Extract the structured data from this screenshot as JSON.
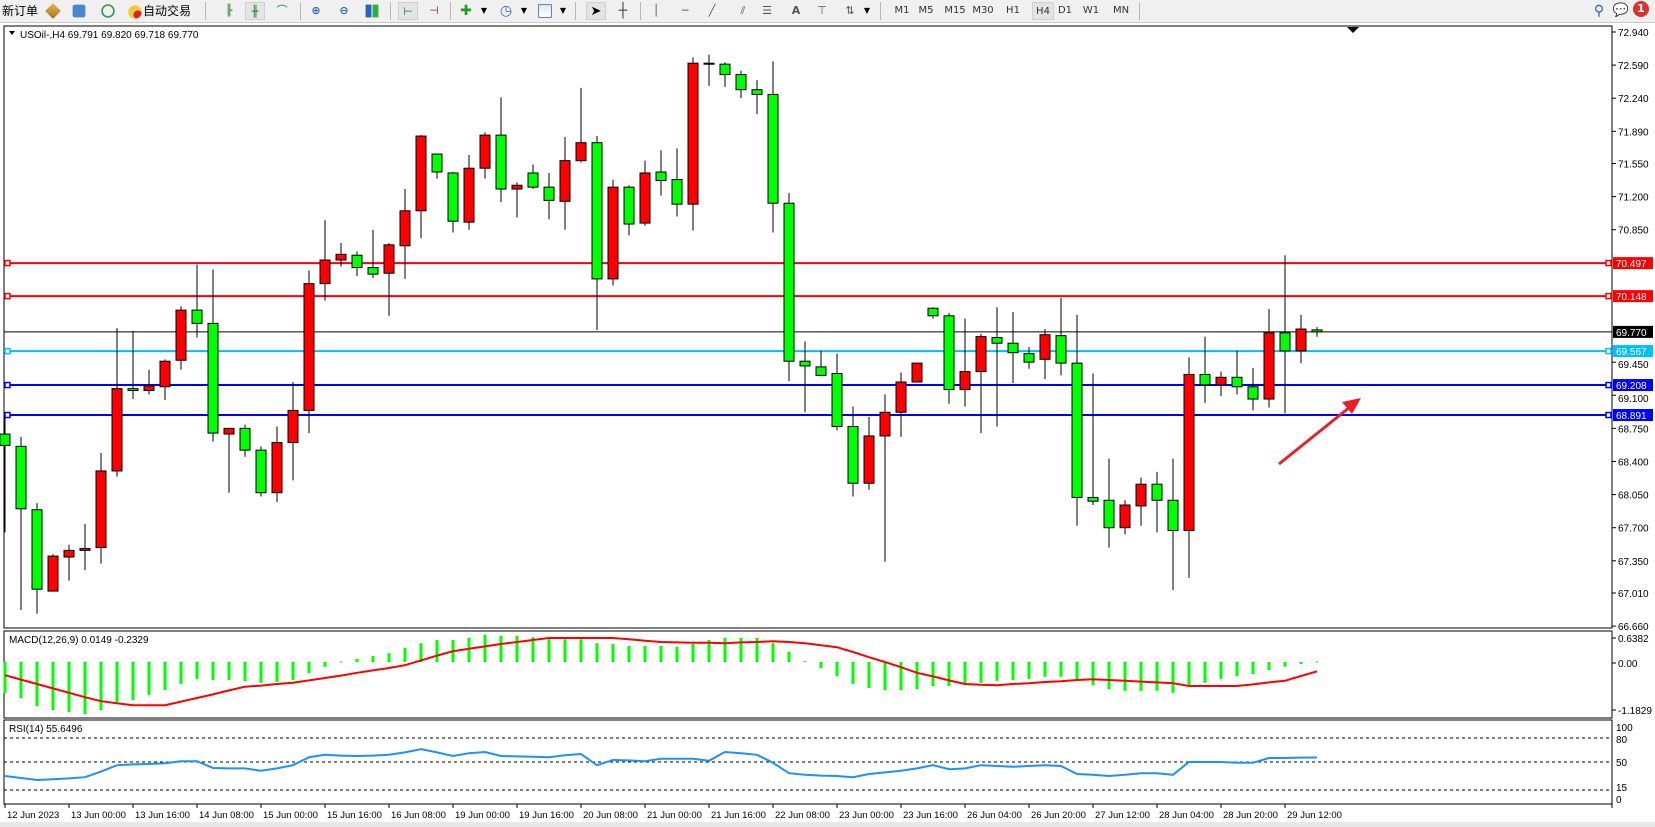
{
  "toolbar": {
    "new_order": "新订单",
    "auto_trading": "自动交易",
    "timeframes": [
      "M1",
      "M5",
      "M15",
      "M30",
      "H1",
      "H4",
      "D1",
      "W1",
      "MN"
    ],
    "active_timeframe": "H4",
    "notification_count": "1",
    "icons": [
      "market-watch-icon",
      "navigator-icon",
      "signals-icon",
      "auto-trading-icon",
      "bar-chart-icon",
      "candlestick-icon",
      "line-chart-icon",
      "zoom-in-icon",
      "zoom-out-icon",
      "tile-windows-icon",
      "chart-shift-icon",
      "autoscroll-icon",
      "new-chart-icon",
      "periods-icon",
      "templates-icon",
      "cursor-icon",
      "crosshair-icon",
      "vertical-line-icon",
      "horizontal-line-icon",
      "trendline-icon",
      "fibo-channel-icon",
      "fibo-retracement-icon",
      "text-icon",
      "text-label-icon",
      "arrows-icon",
      "search-icon",
      "notifications-icon"
    ]
  },
  "chart": {
    "header": "USOil-,H4  69.791 69.820 69.718 69.770",
    "price_ticks": [
      "72.940",
      "72.590",
      "72.240",
      "71.890",
      "71.550",
      "71.200",
      "70.850",
      "69.450",
      "69.100",
      "68.750",
      "68.400",
      "68.050",
      "67.700",
      "67.350",
      "67.010",
      "66.660"
    ],
    "hlines": [
      {
        "value": "70.497",
        "color": "#ff0000",
        "text_color": "#ffffff"
      },
      {
        "value": "70.148",
        "color": "#ff0000",
        "text_color": "#ffffff"
      },
      {
        "value": "69.567",
        "color": "#00bfff",
        "text_color": "#ffffff"
      },
      {
        "value": "69.208",
        "color": "#0000ff",
        "text_color": "#ffffff"
      },
      {
        "value": "68.891",
        "color": "#0000ff",
        "text_color": "#ffffff"
      }
    ],
    "current_price": {
      "value": "69.770",
      "color": "#000000"
    },
    "bull_color": "#ff0000",
    "bear_color": "#00ff00",
    "annotation_arrow_color": "#e8202a",
    "macd": {
      "label": "MACD(12,26,9) 0.0149 -0.2329",
      "ticks": [
        "0.6382",
        "0.00",
        "-1.1829"
      ],
      "hist_color": "#00ff00",
      "signal_color": "#ff0000"
    },
    "rsi": {
      "label": "RSI(14) 55.6496",
      "ticks": [
        "100",
        "80",
        "50",
        "15",
        "0"
      ],
      "levels": [
        80,
        50,
        15
      ],
      "color": "#1e90ff"
    },
    "time_labels": [
      {
        "bar": 0,
        "text": "12 Jun 2023"
      },
      {
        "bar": 4,
        "text": "13 Jun 00:00"
      },
      {
        "bar": 8,
        "text": "13 Jun 16:00"
      },
      {
        "bar": 12,
        "text": "14 Jun 08:00"
      },
      {
        "bar": 16,
        "text": "15 Jun 00:00"
      },
      {
        "bar": 20,
        "text": "15 Jun 16:00"
      },
      {
        "bar": 24,
        "text": "16 Jun 08:00"
      },
      {
        "bar": 28,
        "text": "19 Jun 00:00"
      },
      {
        "bar": 32,
        "text": "19 Jun 16:00"
      },
      {
        "bar": 36,
        "text": "20 Jun 08:00"
      },
      {
        "bar": 40,
        "text": "21 Jun 00:00"
      },
      {
        "bar": 44,
        "text": "21 Jun 16:00"
      },
      {
        "bar": 48,
        "text": "22 Jun 08:00"
      },
      {
        "bar": 52,
        "text": "23 Jun 00:00"
      },
      {
        "bar": 56,
        "text": "23 Jun 16:00"
      },
      {
        "bar": 60,
        "text": "26 Jun 04:00"
      },
      {
        "bar": 64,
        "text": "26 Jun 20:00"
      },
      {
        "bar": 68,
        "text": "27 Jun 12:00"
      },
      {
        "bar": 72,
        "text": "28 Jun 04:00"
      },
      {
        "bar": 76,
        "text": "28 Jun 20:00"
      },
      {
        "bar": 80,
        "text": "29 Jun 12:00"
      }
    ]
  },
  "chart_data": {
    "type": "candlestick",
    "symbol": "USOil-",
    "timeframe": "H4",
    "ylim": [
      66.66,
      72.94
    ],
    "ohlc": [
      [
        68.69,
        68.86,
        67.65,
        68.57
      ],
      [
        68.56,
        68.66,
        66.83,
        67.9
      ],
      [
        67.89,
        67.96,
        66.79,
        67.05
      ],
      [
        67.03,
        67.42,
        67.03,
        67.4
      ],
      [
        67.39,
        67.52,
        67.14,
        67.46
      ],
      [
        67.46,
        67.74,
        67.25,
        67.48
      ],
      [
        67.49,
        68.49,
        67.32,
        68.3
      ],
      [
        68.3,
        69.81,
        68.24,
        69.17
      ],
      [
        69.17,
        69.78,
        69.06,
        69.15
      ],
      [
        69.15,
        69.37,
        69.11,
        69.2
      ],
      [
        69.19,
        69.48,
        69.05,
        69.46
      ],
      [
        69.47,
        70.04,
        69.37,
        70.0
      ],
      [
        70.0,
        70.48,
        69.71,
        69.86
      ],
      [
        69.86,
        70.43,
        68.61,
        68.7
      ],
      [
        68.69,
        68.75,
        68.07,
        68.75
      ],
      [
        68.75,
        68.79,
        68.45,
        68.52
      ],
      [
        68.52,
        68.56,
        68.03,
        68.07
      ],
      [
        68.07,
        68.77,
        67.97,
        68.6
      ],
      [
        68.6,
        69.24,
        68.2,
        68.94
      ],
      [
        68.94,
        70.42,
        68.7,
        70.28
      ],
      [
        70.28,
        70.95,
        70.1,
        70.53
      ],
      [
        70.53,
        70.71,
        70.46,
        70.59
      ],
      [
        70.58,
        70.62,
        70.36,
        70.45
      ],
      [
        70.45,
        70.85,
        70.34,
        70.38
      ],
      [
        70.39,
        70.71,
        69.94,
        70.69
      ],
      [
        70.68,
        71.28,
        70.33,
        71.05
      ],
      [
        71.05,
        71.85,
        70.76,
        71.84
      ],
      [
        71.65,
        71.65,
        71.39,
        71.46
      ],
      [
        71.45,
        71.46,
        70.82,
        70.94
      ],
      [
        70.93,
        71.64,
        70.85,
        71.5
      ],
      [
        71.5,
        71.88,
        71.39,
        71.85
      ],
      [
        71.85,
        72.25,
        71.14,
        71.28
      ],
      [
        71.28,
        71.35,
        70.98,
        71.32
      ],
      [
        71.45,
        71.54,
        71.28,
        71.3
      ],
      [
        71.3,
        71.45,
        70.96,
        71.16
      ],
      [
        71.15,
        71.83,
        70.85,
        71.58
      ],
      [
        71.58,
        72.35,
        71.56,
        71.77
      ],
      [
        71.77,
        71.84,
        69.79,
        70.33
      ],
      [
        70.33,
        71.38,
        70.26,
        71.3
      ],
      [
        71.3,
        71.32,
        70.79,
        70.91
      ],
      [
        70.92,
        71.58,
        70.89,
        71.45
      ],
      [
        71.46,
        71.69,
        71.21,
        71.37
      ],
      [
        71.38,
        71.71,
        70.99,
        71.12
      ],
      [
        71.12,
        72.67,
        70.84,
        72.61
      ],
      [
        72.61,
        72.7,
        72.37,
        72.6
      ],
      [
        72.6,
        72.62,
        72.36,
        72.49
      ],
      [
        72.49,
        72.53,
        72.24,
        72.33
      ],
      [
        72.33,
        72.43,
        72.07,
        72.28
      ],
      [
        72.28,
        72.63,
        70.82,
        71.13
      ],
      [
        71.13,
        71.24,
        69.25,
        69.46
      ],
      [
        69.46,
        69.67,
        68.92,
        69.41
      ],
      [
        69.4,
        69.57,
        69.31,
        69.31
      ],
      [
        69.33,
        69.54,
        68.73,
        68.77
      ],
      [
        68.77,
        68.98,
        68.03,
        68.17
      ],
      [
        68.17,
        68.87,
        68.1,
        68.67
      ],
      [
        68.67,
        69.11,
        67.34,
        68.92
      ],
      [
        68.92,
        69.34,
        68.66,
        69.24
      ],
      [
        69.24,
        69.44,
        69.24,
        69.44
      ],
      [
        70.02,
        70.03,
        69.91,
        69.94
      ],
      [
        69.94,
        69.97,
        69.01,
        69.16
      ],
      [
        69.16,
        69.91,
        68.98,
        69.35
      ],
      [
        69.35,
        69.75,
        68.7,
        69.72
      ],
      [
        69.71,
        70.03,
        68.77,
        69.65
      ],
      [
        69.65,
        69.98,
        69.23,
        69.55
      ],
      [
        69.54,
        69.61,
        69.38,
        69.45
      ],
      [
        69.48,
        69.8,
        69.27,
        69.74
      ],
      [
        69.73,
        70.13,
        69.31,
        69.44
      ],
      [
        69.44,
        69.95,
        67.72,
        68.02
      ],
      [
        68.02,
        69.33,
        67.94,
        67.98
      ],
      [
        67.99,
        68.43,
        67.49,
        67.7
      ],
      [
        67.7,
        67.99,
        67.63,
        67.94
      ],
      [
        67.93,
        68.23,
        67.72,
        68.16
      ],
      [
        68.16,
        68.29,
        67.65,
        67.99
      ],
      [
        67.99,
        68.43,
        67.04,
        67.67
      ],
      [
        67.67,
        69.5,
        67.17,
        69.32
      ],
      [
        69.32,
        69.72,
        69.02,
        69.21
      ],
      [
        69.21,
        69.35,
        69.09,
        69.29
      ],
      [
        69.29,
        69.57,
        69.11,
        69.19
      ],
      [
        69.19,
        69.39,
        68.94,
        69.06
      ],
      [
        69.06,
        70.01,
        68.97,
        69.76
      ],
      [
        69.76,
        70.58,
        68.91,
        69.57
      ],
      [
        69.57,
        69.95,
        69.44,
        69.8
      ],
      [
        69.791,
        69.82,
        69.718,
        69.77
      ]
    ],
    "macd_ylim": [
      -1.1829,
      0.6382
    ],
    "macd_hist": [
      -0.78,
      -0.9,
      -1.1,
      -1.2,
      -1.25,
      -1.3,
      -1.2,
      -1.0,
      -0.95,
      -0.82,
      -0.7,
      -0.55,
      -0.42,
      -0.45,
      -0.45,
      -0.48,
      -0.52,
      -0.5,
      -0.45,
      -0.28,
      -0.12,
      0.01,
      0.08,
      0.15,
      0.22,
      0.35,
      0.47,
      0.55,
      0.55,
      0.6,
      0.68,
      0.65,
      0.65,
      0.62,
      0.57,
      0.57,
      0.57,
      0.47,
      0.45,
      0.4,
      0.4,
      0.4,
      0.38,
      0.45,
      0.55,
      0.6,
      0.6,
      0.6,
      0.47,
      0.25,
      0.02,
      -0.15,
      -0.35,
      -0.55,
      -0.65,
      -0.7,
      -0.7,
      -0.68,
      -0.6,
      -0.6,
      -0.58,
      -0.52,
      -0.47,
      -0.45,
      -0.42,
      -0.37,
      -0.37,
      -0.45,
      -0.58,
      -0.68,
      -0.72,
      -0.72,
      -0.72,
      -0.77,
      -0.58,
      -0.52,
      -0.42,
      -0.35,
      -0.3,
      -0.2,
      -0.12,
      -0.05,
      0.0149
    ],
    "macd_signal": [
      -0.33,
      -0.44,
      -0.55,
      -0.66,
      -0.77,
      -0.88,
      -0.98,
      -1.03,
      -1.08,
      -1.08,
      -1.08,
      -0.99,
      -0.9,
      -0.81,
      -0.71,
      -0.62,
      -0.59,
      -0.55,
      -0.52,
      -0.46,
      -0.4,
      -0.34,
      -0.27,
      -0.21,
      -0.15,
      -0.08,
      0.04,
      0.16,
      0.27,
      0.33,
      0.39,
      0.45,
      0.5,
      0.55,
      0.6,
      0.6,
      0.6,
      0.6,
      0.6,
      0.57,
      0.53,
      0.5,
      0.49,
      0.48,
      0.48,
      0.47,
      0.49,
      0.5,
      0.52,
      0.5,
      0.47,
      0.42,
      0.37,
      0.25,
      0.12,
      0.0,
      -0.13,
      -0.27,
      -0.36,
      -0.46,
      -0.55,
      -0.57,
      -0.58,
      -0.55,
      -0.53,
      -0.5,
      -0.48,
      -0.45,
      -0.43,
      -0.45,
      -0.47,
      -0.49,
      -0.51,
      -0.53,
      -0.6,
      -0.6,
      -0.6,
      -0.6,
      -0.56,
      -0.51,
      -0.47,
      -0.35,
      -0.2329
    ],
    "rsi_ylim": [
      0,
      100
    ],
    "rsi": [
      32.5,
      30,
      27.5,
      28.5,
      29.5,
      31,
      38,
      46,
      47,
      47.5,
      48.5,
      51,
      51,
      42.5,
      42,
      42,
      39,
      42,
      46,
      56,
      59,
      58,
      57.5,
      58,
      59,
      62,
      66,
      62,
      57.5,
      61,
      62.5,
      57.5,
      57,
      56.5,
      56,
      58.5,
      60,
      46,
      52.5,
      52,
      51,
      54,
      54,
      54,
      51.5,
      62.5,
      61,
      59,
      49,
      36,
      34,
      33,
      32.5,
      31,
      35,
      37,
      39,
      42,
      46,
      41,
      42,
      46,
      45,
      44,
      45,
      46,
      45,
      35,
      34,
      32.5,
      34,
      36,
      36,
      34,
      50,
      50,
      50,
      49,
      49,
      55,
      55,
      55.5,
      55.6496
    ]
  }
}
